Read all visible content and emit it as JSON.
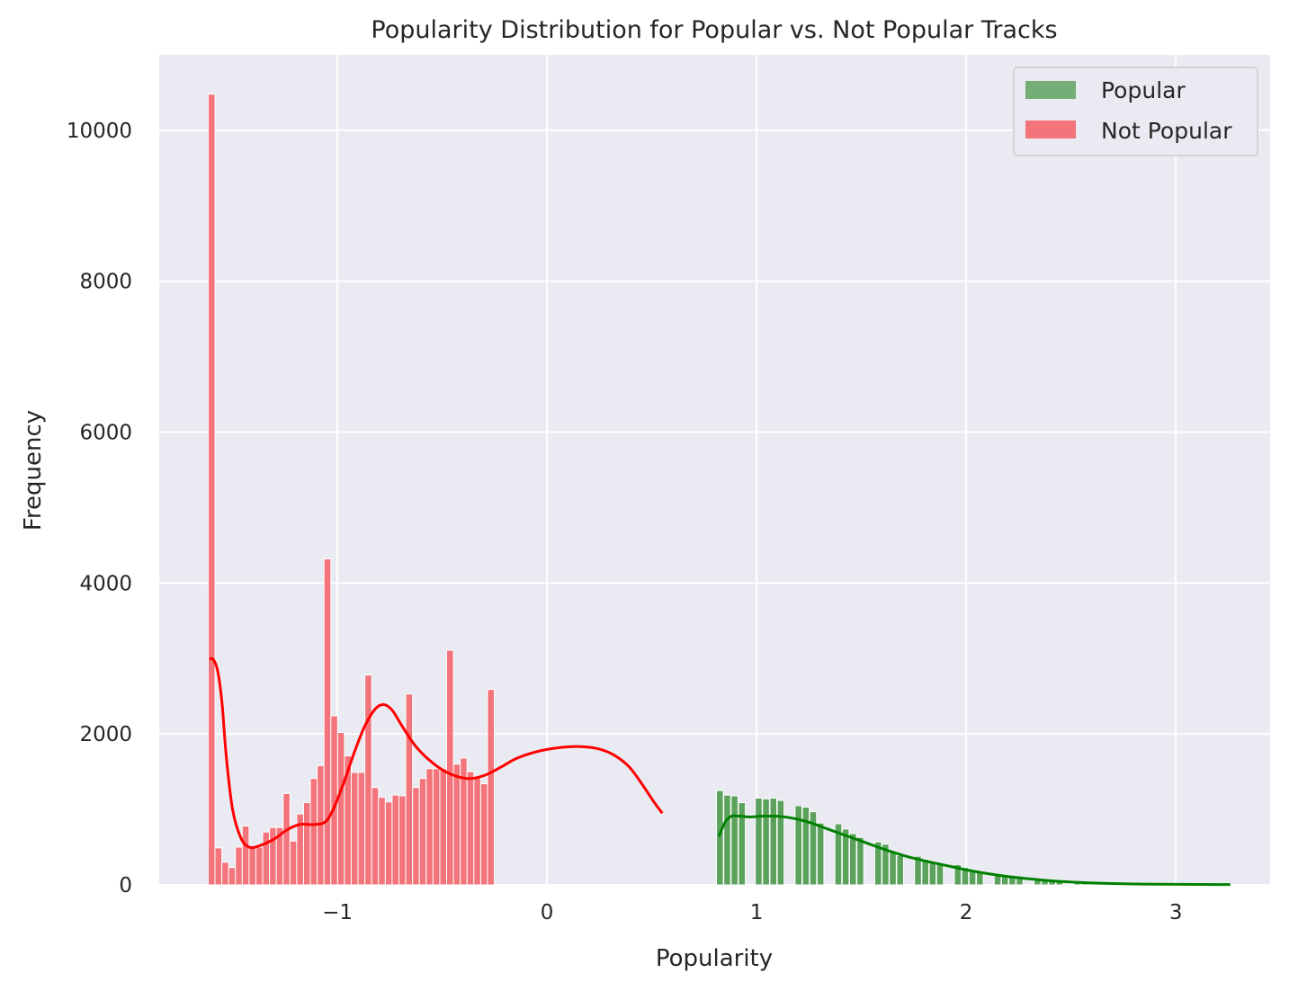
{
  "chart_data": {
    "type": "bar",
    "title": "Popularity Distribution for Popular vs. Not Popular Tracks",
    "xlabel": "Popularity",
    "ylabel": "Frequency",
    "xlim": [
      -1.85,
      3.45
    ],
    "ylim": [
      0,
      11000
    ],
    "xticks": [
      -1,
      0,
      1,
      2,
      3
    ],
    "xtick_labels": [
      "−1",
      "0",
      "1",
      "2",
      "3"
    ],
    "yticks": [
      0,
      2000,
      4000,
      6000,
      8000,
      10000
    ],
    "ytick_labels": [
      "0",
      "2000",
      "4000",
      "6000",
      "8000",
      "10000"
    ],
    "grid": true,
    "legend_position": "top-right",
    "bin_width": 0.0325,
    "series": [
      {
        "name": "Popular",
        "color": "#4c9a4c",
        "kde_color": "#008000",
        "bins": [
          {
            "x": 0.825,
            "y": 1250
          },
          {
            "x": 0.86,
            "y": 1190
          },
          {
            "x": 0.895,
            "y": 1180
          },
          {
            "x": 0.93,
            "y": 1090
          },
          {
            "x": 1.01,
            "y": 1150
          },
          {
            "x": 1.045,
            "y": 1140
          },
          {
            "x": 1.08,
            "y": 1150
          },
          {
            "x": 1.115,
            "y": 1120
          },
          {
            "x": 1.2,
            "y": 1050
          },
          {
            "x": 1.235,
            "y": 1030
          },
          {
            "x": 1.27,
            "y": 970
          },
          {
            "x": 1.305,
            "y": 820
          },
          {
            "x": 1.39,
            "y": 810
          },
          {
            "x": 1.425,
            "y": 740
          },
          {
            "x": 1.46,
            "y": 680
          },
          {
            "x": 1.495,
            "y": 630
          },
          {
            "x": 1.58,
            "y": 570
          },
          {
            "x": 1.615,
            "y": 540
          },
          {
            "x": 1.65,
            "y": 440
          },
          {
            "x": 1.685,
            "y": 390
          },
          {
            "x": 1.77,
            "y": 380
          },
          {
            "x": 1.805,
            "y": 340
          },
          {
            "x": 1.84,
            "y": 300
          },
          {
            "x": 1.875,
            "y": 270
          },
          {
            "x": 1.96,
            "y": 270
          },
          {
            "x": 1.995,
            "y": 230
          },
          {
            "x": 2.03,
            "y": 200
          },
          {
            "x": 2.065,
            "y": 180
          },
          {
            "x": 2.15,
            "y": 140
          },
          {
            "x": 2.185,
            "y": 130
          },
          {
            "x": 2.22,
            "y": 110
          },
          {
            "x": 2.255,
            "y": 95
          },
          {
            "x": 2.34,
            "y": 70
          },
          {
            "x": 2.375,
            "y": 60
          },
          {
            "x": 2.41,
            "y": 50
          },
          {
            "x": 2.445,
            "y": 40
          },
          {
            "x": 2.53,
            "y": 30
          },
          {
            "x": 2.565,
            "y": 25
          },
          {
            "x": 2.6,
            "y": 20
          },
          {
            "x": 2.635,
            "y": 18
          },
          {
            "x": 2.72,
            "y": 14
          },
          {
            "x": 2.755,
            "y": 12
          },
          {
            "x": 2.79,
            "y": 10
          },
          {
            "x": 2.825,
            "y": 9
          },
          {
            "x": 2.91,
            "y": 8
          },
          {
            "x": 2.945,
            "y": 7
          },
          {
            "x": 2.98,
            "y": 6
          },
          {
            "x": 3.015,
            "y": 5
          },
          {
            "x": 3.1,
            "y": 5
          },
          {
            "x": 3.135,
            "y": 4
          },
          {
            "x": 3.17,
            "y": 4
          },
          {
            "x": 3.205,
            "y": 3
          },
          {
            "x": 3.24,
            "y": 3
          }
        ],
        "kde": [
          [
            0.82,
            640
          ],
          [
            0.85,
            830
          ],
          [
            0.88,
            910
          ],
          [
            0.92,
            910
          ],
          [
            0.97,
            900
          ],
          [
            1.02,
            910
          ],
          [
            1.1,
            910
          ],
          [
            1.18,
            880
          ],
          [
            1.26,
            820
          ],
          [
            1.34,
            740
          ],
          [
            1.42,
            660
          ],
          [
            1.5,
            580
          ],
          [
            1.6,
            480
          ],
          [
            1.7,
            390
          ],
          [
            1.8,
            320
          ],
          [
            1.9,
            260
          ],
          [
            2.0,
            200
          ],
          [
            2.1,
            150
          ],
          [
            2.2,
            110
          ],
          [
            2.3,
            80
          ],
          [
            2.4,
            55
          ],
          [
            2.5,
            38
          ],
          [
            2.6,
            26
          ],
          [
            2.7,
            18
          ],
          [
            2.8,
            12
          ],
          [
            2.9,
            9
          ],
          [
            3.0,
            7
          ],
          [
            3.1,
            6
          ],
          [
            3.2,
            5
          ],
          [
            3.26,
            4
          ]
        ]
      },
      {
        "name": "Not Popular",
        "color": "#f4676e",
        "kde_color": "#ff0000",
        "bins": [
          {
            "x": -1.6,
            "y": 10480
          },
          {
            "x": -1.5675,
            "y": 490
          },
          {
            "x": -1.535,
            "y": 300
          },
          {
            "x": -1.5025,
            "y": 230
          },
          {
            "x": -1.47,
            "y": 500
          },
          {
            "x": -1.4375,
            "y": 780
          },
          {
            "x": -1.405,
            "y": 490
          },
          {
            "x": -1.3725,
            "y": 500
          },
          {
            "x": -1.34,
            "y": 700
          },
          {
            "x": -1.3075,
            "y": 760
          },
          {
            "x": -1.275,
            "y": 760
          },
          {
            "x": -1.2425,
            "y": 1210
          },
          {
            "x": -1.21,
            "y": 580
          },
          {
            "x": -1.1775,
            "y": 940
          },
          {
            "x": -1.145,
            "y": 1090
          },
          {
            "x": -1.1125,
            "y": 1410
          },
          {
            "x": -1.08,
            "y": 1580
          },
          {
            "x": -1.0475,
            "y": 4320
          },
          {
            "x": -1.015,
            "y": 2240
          },
          {
            "x": -0.9825,
            "y": 2020
          },
          {
            "x": -0.95,
            "y": 1710
          },
          {
            "x": -0.9175,
            "y": 1490
          },
          {
            "x": -0.885,
            "y": 1490
          },
          {
            "x": -0.8525,
            "y": 2780
          },
          {
            "x": -0.82,
            "y": 1290
          },
          {
            "x": -0.7875,
            "y": 1160
          },
          {
            "x": -0.755,
            "y": 1100
          },
          {
            "x": -0.7225,
            "y": 1190
          },
          {
            "x": -0.69,
            "y": 1180
          },
          {
            "x": -0.6575,
            "y": 2530
          },
          {
            "x": -0.625,
            "y": 1290
          },
          {
            "x": -0.5925,
            "y": 1410
          },
          {
            "x": -0.56,
            "y": 1540
          },
          {
            "x": -0.5275,
            "y": 1540
          },
          {
            "x": -0.495,
            "y": 1540
          },
          {
            "x": -0.4625,
            "y": 3110
          },
          {
            "x": -0.43,
            "y": 1600
          },
          {
            "x": -0.3975,
            "y": 1680
          },
          {
            "x": -0.365,
            "y": 1500
          },
          {
            "x": -0.3325,
            "y": 1430
          },
          {
            "x": -0.3,
            "y": 1340
          },
          {
            "x": -0.2675,
            "y": 2590
          }
        ],
        "kde": [
          [
            -1.61,
            3000
          ],
          [
            -1.59,
            2980
          ],
          [
            -1.57,
            2820
          ],
          [
            -1.55,
            2400
          ],
          [
            -1.53,
            1700
          ],
          [
            -1.5,
            1000
          ],
          [
            -1.46,
            620
          ],
          [
            -1.42,
            500
          ],
          [
            -1.37,
            520
          ],
          [
            -1.3,
            610
          ],
          [
            -1.24,
            730
          ],
          [
            -1.18,
            800
          ],
          [
            -1.12,
            800
          ],
          [
            -1.06,
            830
          ],
          [
            -1.02,
            1000
          ],
          [
            -0.97,
            1350
          ],
          [
            -0.92,
            1750
          ],
          [
            -0.87,
            2100
          ],
          [
            -0.82,
            2330
          ],
          [
            -0.78,
            2390
          ],
          [
            -0.74,
            2320
          ],
          [
            -0.69,
            2100
          ],
          [
            -0.63,
            1850
          ],
          [
            -0.56,
            1650
          ],
          [
            -0.49,
            1510
          ],
          [
            -0.42,
            1430
          ],
          [
            -0.36,
            1410
          ],
          [
            -0.29,
            1460
          ],
          [
            -0.22,
            1560
          ],
          [
            -0.15,
            1670
          ],
          [
            -0.07,
            1750
          ],
          [
            0.01,
            1800
          ],
          [
            0.1,
            1830
          ],
          [
            0.18,
            1830
          ],
          [
            0.25,
            1800
          ],
          [
            0.32,
            1720
          ],
          [
            0.39,
            1570
          ],
          [
            0.45,
            1350
          ],
          [
            0.51,
            1100
          ],
          [
            0.55,
            950
          ]
        ]
      }
    ]
  }
}
